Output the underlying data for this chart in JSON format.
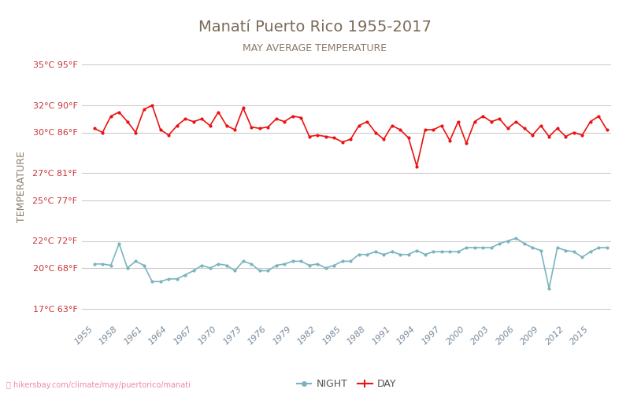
{
  "title": "Manatí Puerto Rico 1955-2017",
  "subtitle": "MAY AVERAGE TEMPERATURE",
  "ylabel": "TEMPERATURE",
  "watermark": "hikersbay.com/climate/may/puertorico/manati",
  "title_color": "#7a6a5a",
  "subtitle_color": "#8a7a6a",
  "ylabel_color": "#8a7a6a",
  "background_color": "#ffffff",
  "grid_color": "#cccccc",
  "night_color": "#7ab5be",
  "day_color": "#ee1111",
  "years": [
    1955,
    1956,
    1957,
    1958,
    1959,
    1960,
    1961,
    1962,
    1963,
    1964,
    1965,
    1966,
    1967,
    1968,
    1969,
    1970,
    1971,
    1972,
    1973,
    1974,
    1975,
    1976,
    1977,
    1978,
    1979,
    1980,
    1981,
    1982,
    1983,
    1984,
    1985,
    1986,
    1987,
    1988,
    1989,
    1990,
    1991,
    1992,
    1993,
    1994,
    1995,
    1996,
    1997,
    1998,
    1999,
    2000,
    2001,
    2002,
    2003,
    2004,
    2005,
    2006,
    2007,
    2008,
    2009,
    2010,
    2011,
    2012,
    2013,
    2014,
    2015,
    2016,
    2017
  ],
  "day_temps": [
    30.3,
    30.0,
    31.2,
    31.5,
    30.8,
    30.0,
    31.7,
    32.0,
    30.2,
    29.8,
    30.5,
    31.0,
    30.8,
    31.0,
    30.5,
    31.5,
    30.5,
    30.2,
    31.8,
    30.4,
    30.3,
    30.4,
    31.0,
    30.8,
    31.2,
    31.1,
    29.7,
    29.8,
    29.7,
    29.6,
    29.3,
    29.5,
    30.5,
    30.8,
    30.0,
    29.5,
    30.5,
    30.2,
    29.6,
    27.5,
    30.2,
    30.2,
    30.5,
    29.4,
    30.8,
    29.2,
    30.8,
    31.2,
    30.8,
    31.0,
    30.3,
    30.8,
    30.3,
    29.8,
    30.5,
    29.7,
    30.3,
    29.7,
    30.0,
    29.8,
    30.8,
    31.2,
    30.2
  ],
  "night_temps": [
    20.3,
    20.3,
    20.2,
    21.8,
    20.0,
    20.5,
    20.2,
    19.0,
    19.0,
    19.2,
    19.2,
    19.5,
    19.8,
    20.2,
    20.0,
    20.3,
    20.2,
    19.8,
    20.5,
    20.3,
    19.8,
    19.8,
    20.2,
    20.3,
    20.5,
    20.5,
    20.2,
    20.3,
    20.0,
    20.2,
    20.5,
    20.5,
    21.0,
    21.0,
    21.2,
    21.0,
    21.2,
    21.0,
    21.0,
    21.3,
    21.0,
    21.2,
    21.2,
    21.2,
    21.2,
    21.5,
    21.5,
    21.5,
    21.5,
    21.8,
    22.0,
    22.2,
    21.8,
    21.5,
    21.3,
    18.5,
    21.5,
    21.3,
    21.2,
    20.8,
    21.2,
    21.5,
    21.5
  ],
  "yticks_c": [
    17,
    20,
    22,
    25,
    27,
    30,
    32,
    35
  ],
  "yticks_f": [
    63,
    68,
    72,
    77,
    81,
    86,
    90,
    95
  ],
  "ylim": [
    16,
    36
  ],
  "xtick_years": [
    1955,
    1958,
    1961,
    1964,
    1967,
    1970,
    1973,
    1976,
    1979,
    1982,
    1985,
    1988,
    1991,
    1994,
    1997,
    2000,
    2003,
    2006,
    2009,
    2012,
    2015
  ]
}
